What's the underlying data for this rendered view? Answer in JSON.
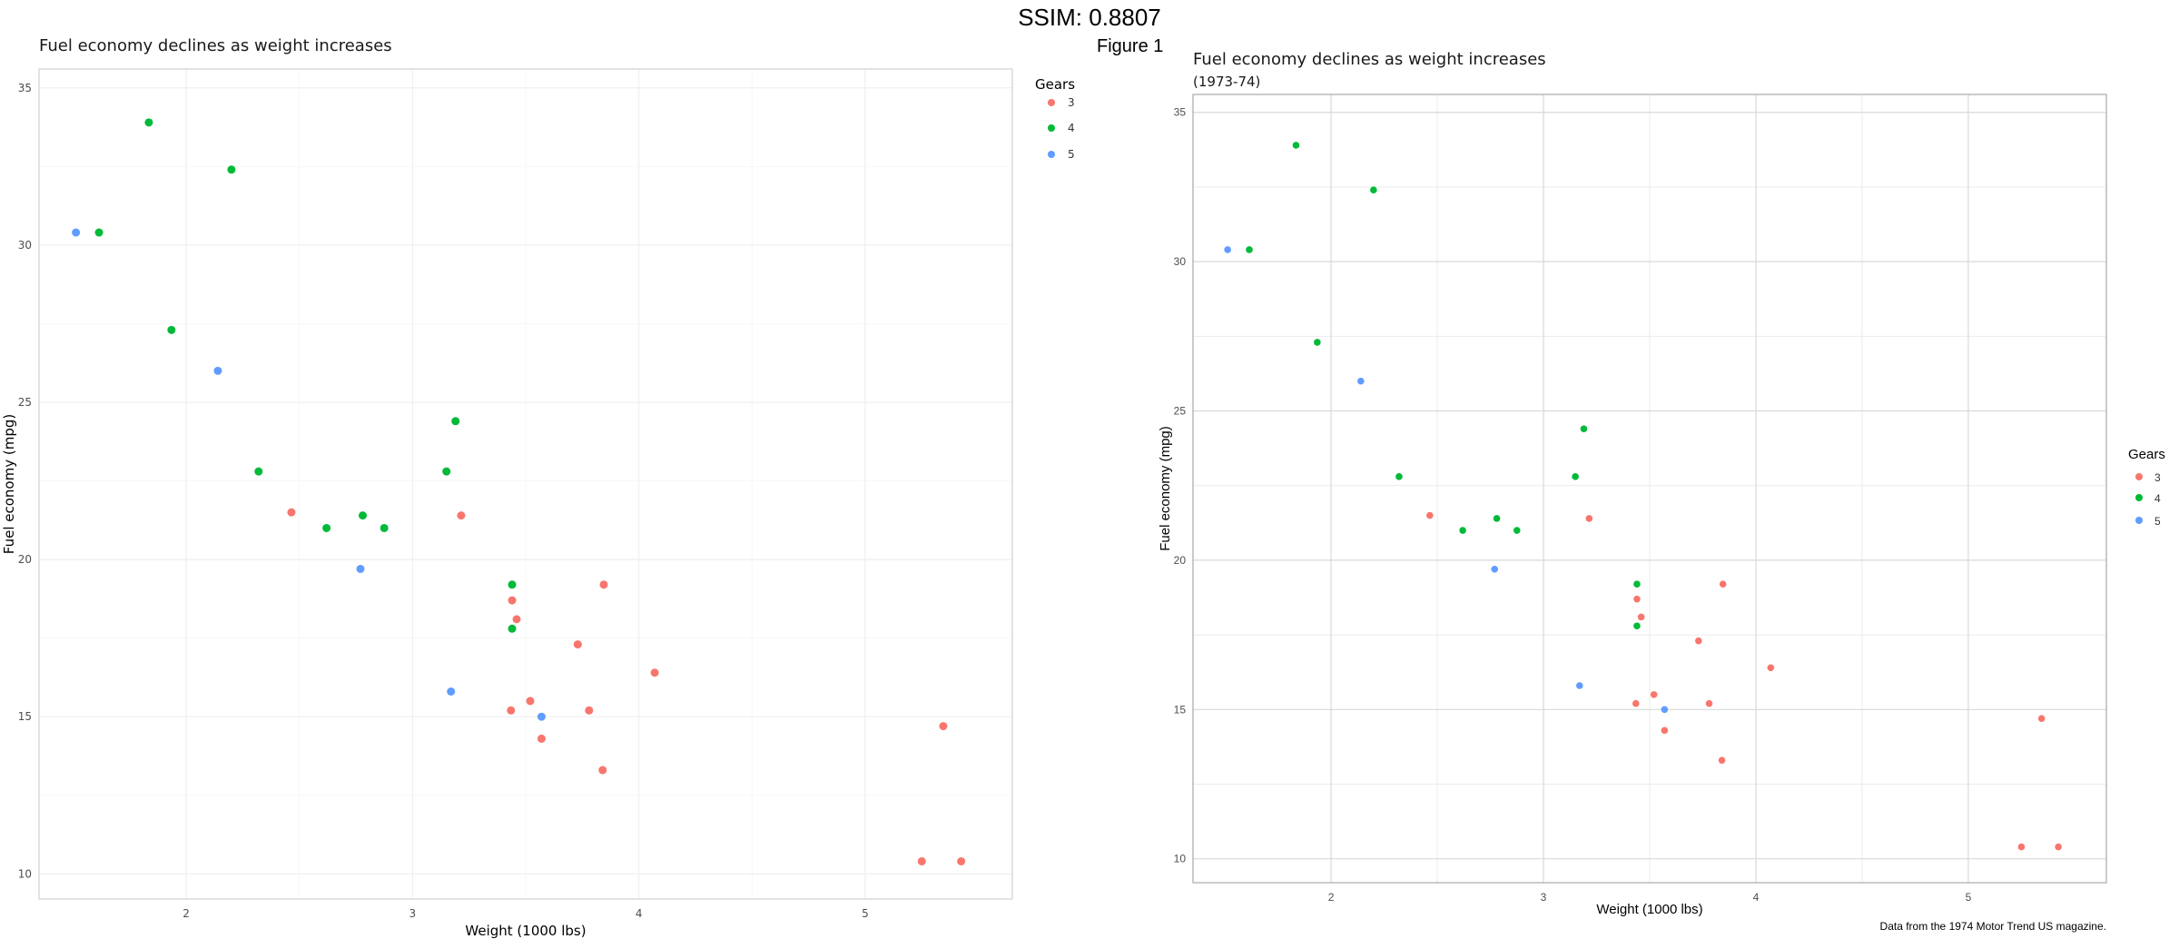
{
  "header": {
    "ssim": "SSIM: 0.8807",
    "figure": "Figure 1"
  },
  "chart_data": [
    {
      "type": "scatter",
      "title": "Fuel economy declines as weight increases",
      "subtitle": "",
      "xlabel": "Weight (1000 lbs)",
      "ylabel": "Fuel economy (mpg)",
      "caption": "",
      "xlim": [
        1.35,
        5.65
      ],
      "ylim": [
        9.2,
        35.6
      ],
      "xticks": [
        2,
        3,
        4,
        5
      ],
      "yticks": [
        10,
        15,
        20,
        25,
        30,
        35
      ],
      "grid": "light",
      "legend": {
        "title": "Gears",
        "position": "right",
        "entries": [
          "3",
          "4",
          "5"
        ]
      }
    },
    {
      "type": "scatter",
      "title": "Fuel economy declines as weight increases",
      "subtitle": "(1973-74)",
      "xlabel": "Weight (1000 lbs)",
      "ylabel": "Fuel economy (mpg)",
      "caption": "Data from the 1974 Motor Trend US magazine.",
      "xlim": [
        1.35,
        5.65
      ],
      "ylim": [
        9.2,
        35.6
      ],
      "xticks": [
        2,
        3,
        4,
        5
      ],
      "yticks": [
        10,
        15,
        20,
        25,
        30,
        35
      ],
      "grid": "normal",
      "legend": {
        "title": "Gears",
        "position": "right",
        "entries": [
          "3",
          "4",
          "5"
        ]
      }
    }
  ],
  "series": [
    {
      "name": "3",
      "color": "#F8766D",
      "points": [
        [
          2.465,
          21.5
        ],
        [
          3.215,
          21.4
        ],
        [
          3.44,
          18.7
        ],
        [
          3.46,
          18.1
        ],
        [
          3.57,
          14.3
        ],
        [
          4.07,
          16.4
        ],
        [
          3.73,
          17.3
        ],
        [
          3.78,
          15.2
        ],
        [
          5.25,
          10.4
        ],
        [
          5.424,
          10.4
        ],
        [
          5.345,
          14.7
        ],
        [
          3.52,
          15.5
        ],
        [
          3.435,
          15.2
        ],
        [
          3.84,
          13.3
        ],
        [
          3.845,
          19.2
        ]
      ]
    },
    {
      "name": "4",
      "color": "#00BA38",
      "points": [
        [
          2.62,
          21.0
        ],
        [
          2.875,
          21.0
        ],
        [
          2.32,
          22.8
        ],
        [
          3.19,
          24.4
        ],
        [
          3.15,
          22.8
        ],
        [
          3.44,
          19.2
        ],
        [
          3.44,
          17.8
        ],
        [
          2.2,
          32.4
        ],
        [
          1.615,
          30.4
        ],
        [
          1.835,
          33.9
        ],
        [
          1.935,
          27.3
        ],
        [
          2.78,
          21.4
        ]
      ]
    },
    {
      "name": "5",
      "color": "#619CFF",
      "points": [
        [
          2.14,
          26.0
        ],
        [
          1.513,
          30.4
        ],
        [
          3.17,
          15.8
        ],
        [
          2.77,
          19.7
        ],
        [
          3.57,
          15.0
        ]
      ]
    }
  ]
}
